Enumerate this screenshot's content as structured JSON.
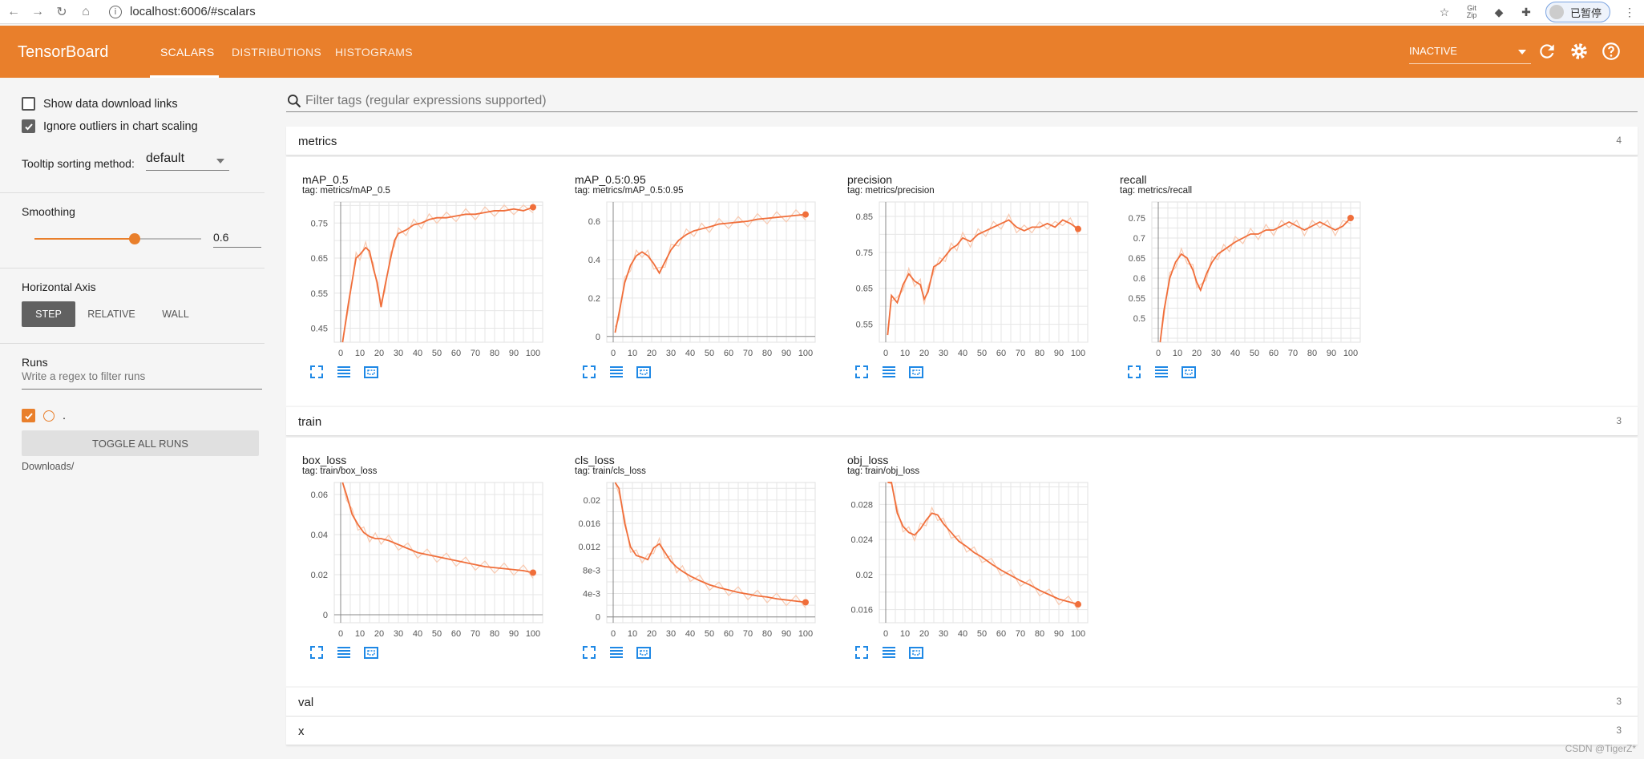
{
  "browser": {
    "url": "localhost:6006/#scalars",
    "paused_label": "已暂停"
  },
  "header": {
    "logo": "TensorBoard",
    "tabs": [
      "SCALARS",
      "DISTRIBUTIONS",
      "HISTOGRAMS"
    ],
    "status_select": "INACTIVE"
  },
  "sidebar": {
    "show_download_links": "Show data download links",
    "ignore_outliers": "Ignore outliers in chart scaling",
    "tooltip_label": "Tooltip sorting method:",
    "tooltip_value": "default",
    "smoothing_title": "Smoothing",
    "smoothing_value": "0.6",
    "smoothing_fraction": 0.6,
    "haxis_title": "Horizontal Axis",
    "haxis_options": [
      "STEP",
      "RELATIVE",
      "WALL"
    ],
    "runs_title": "Runs",
    "runs_filter_placeholder": "Write a regex to filter runs",
    "run_name": ".",
    "toggle_all": "TOGGLE ALL RUNS",
    "logdir": "Downloads/"
  },
  "main": {
    "filter_placeholder": "Filter tags (regular expressions supported)",
    "groups": [
      {
        "name": "metrics",
        "count": "4"
      },
      {
        "name": "train",
        "count": "3"
      },
      {
        "name": "val",
        "count": "3"
      },
      {
        "name": "x",
        "count": "3"
      }
    ]
  },
  "colors": {
    "accent": "#e97f2b",
    "line": "#f06e3a",
    "line_raw": "#f8c9b0"
  },
  "chart_data": [
    {
      "type": "line",
      "title": "mAP_0.5",
      "tag": "tag: metrics/mAP_0.5",
      "xlim": [
        0,
        100
      ],
      "ylim": [
        0.41,
        0.81
      ],
      "xticks": [
        "0",
        "10",
        "20",
        "30",
        "40",
        "50",
        "60",
        "70",
        "80",
        "90",
        "100"
      ],
      "yticks": [
        0.45,
        0.55,
        0.65,
        0.75
      ],
      "yticklabels": [
        "0.45",
        "0.55",
        "0.65",
        "0.75"
      ],
      "x": [
        1,
        4,
        8,
        10,
        13,
        15,
        17,
        19,
        21,
        23,
        26,
        28,
        30,
        34,
        38,
        42,
        46,
        50,
        55,
        60,
        65,
        70,
        75,
        80,
        85,
        90,
        95,
        100
      ],
      "y": [
        0.39,
        0.52,
        0.65,
        0.66,
        0.68,
        0.67,
        0.62,
        0.58,
        0.51,
        0.57,
        0.65,
        0.7,
        0.72,
        0.73,
        0.745,
        0.75,
        0.76,
        0.765,
        0.765,
        0.77,
        0.775,
        0.775,
        0.78,
        0.785,
        0.785,
        0.79,
        0.785,
        0.795
      ]
    },
    {
      "type": "line",
      "title": "mAP_0.5:0.95",
      "tag": "tag: metrics/mAP_0.5:0.95",
      "xlim": [
        0,
        100
      ],
      "ylim": [
        -0.03,
        0.7
      ],
      "xticks": [
        "0",
        "10",
        "20",
        "30",
        "40",
        "50",
        "60",
        "70",
        "80",
        "90",
        "100"
      ],
      "yticks": [
        0,
        0.2,
        0.4,
        0.6
      ],
      "yticklabels": [
        "0",
        "0.2",
        "0.4",
        "0.6"
      ],
      "x": [
        1,
        3,
        6,
        9,
        12,
        15,
        18,
        21,
        24,
        27,
        30,
        34,
        38,
        42,
        46,
        50,
        55,
        60,
        65,
        70,
        75,
        80,
        85,
        90,
        95,
        100
      ],
      "y": [
        0.02,
        0.12,
        0.28,
        0.37,
        0.42,
        0.44,
        0.42,
        0.38,
        0.33,
        0.39,
        0.45,
        0.5,
        0.53,
        0.55,
        0.56,
        0.57,
        0.585,
        0.59,
        0.595,
        0.6,
        0.61,
        0.615,
        0.62,
        0.625,
        0.63,
        0.635
      ]
    },
    {
      "type": "line",
      "title": "precision",
      "tag": "tag: metrics/precision",
      "xlim": [
        0,
        100
      ],
      "ylim": [
        0.5,
        0.89
      ],
      "xticks": [
        "0",
        "10",
        "20",
        "30",
        "40",
        "50",
        "60",
        "70",
        "80",
        "90",
        "100"
      ],
      "yticks": [
        0.55,
        0.65,
        0.75,
        0.85
      ],
      "yticklabels": [
        "0.55",
        "0.65",
        "0.75",
        "0.85"
      ],
      "x": [
        1,
        3,
        6,
        9,
        12,
        15,
        18,
        20,
        22,
        25,
        28,
        31,
        34,
        37,
        40,
        44,
        48,
        52,
        56,
        60,
        64,
        68,
        72,
        76,
        80,
        84,
        88,
        92,
        96,
        100
      ],
      "y": [
        0.52,
        0.63,
        0.61,
        0.66,
        0.69,
        0.67,
        0.66,
        0.62,
        0.64,
        0.71,
        0.72,
        0.74,
        0.76,
        0.77,
        0.79,
        0.78,
        0.8,
        0.81,
        0.82,
        0.83,
        0.84,
        0.82,
        0.81,
        0.82,
        0.82,
        0.83,
        0.82,
        0.84,
        0.83,
        0.815
      ]
    },
    {
      "type": "line",
      "title": "recall",
      "tag": "tag: metrics/recall",
      "xlim": [
        0,
        100
      ],
      "ylim": [
        0.44,
        0.79
      ],
      "xticks": [
        "0",
        "10",
        "20",
        "30",
        "40",
        "50",
        "60",
        "70",
        "80",
        "90",
        "100"
      ],
      "yticks": [
        0.5,
        0.55,
        0.6,
        0.65,
        0.7,
        0.75
      ],
      "yticklabels": [
        "0.5",
        "0.55",
        "0.6",
        "0.65",
        "0.7",
        "0.75"
      ],
      "x": [
        1,
        3,
        6,
        9,
        12,
        15,
        18,
        20,
        22,
        25,
        28,
        31,
        34,
        37,
        40,
        44,
        48,
        52,
        56,
        60,
        64,
        68,
        72,
        76,
        80,
        84,
        88,
        92,
        96,
        100
      ],
      "y": [
        0.42,
        0.52,
        0.6,
        0.64,
        0.66,
        0.65,
        0.62,
        0.59,
        0.57,
        0.61,
        0.64,
        0.66,
        0.67,
        0.68,
        0.69,
        0.7,
        0.71,
        0.71,
        0.72,
        0.72,
        0.73,
        0.74,
        0.73,
        0.72,
        0.73,
        0.74,
        0.73,
        0.72,
        0.73,
        0.75
      ]
    },
    {
      "type": "line",
      "title": "box_loss",
      "tag": "tag: train/box_loss",
      "xlim": [
        0,
        100
      ],
      "ylim": [
        -0.004,
        0.066
      ],
      "xticks": [
        "0",
        "10",
        "20",
        "30",
        "40",
        "50",
        "60",
        "70",
        "80",
        "90",
        "100"
      ],
      "yticks": [
        0,
        0.02,
        0.04,
        0.06
      ],
      "yticklabels": [
        "0",
        "0.02",
        "0.04",
        "0.06"
      ],
      "x": [
        1,
        3,
        6,
        9,
        12,
        15,
        18,
        21,
        25,
        30,
        35,
        40,
        45,
        50,
        55,
        60,
        65,
        70,
        75,
        80,
        85,
        90,
        95,
        100
      ],
      "y": [
        0.075,
        0.06,
        0.05,
        0.045,
        0.041,
        0.039,
        0.038,
        0.038,
        0.037,
        0.035,
        0.033,
        0.031,
        0.03,
        0.029,
        0.028,
        0.027,
        0.026,
        0.025,
        0.024,
        0.0235,
        0.023,
        0.0225,
        0.022,
        0.021
      ]
    },
    {
      "type": "line",
      "title": "cls_loss",
      "tag": "tag: train/cls_loss",
      "xlim": [
        0,
        100
      ],
      "ylim": [
        -0.001,
        0.023
      ],
      "xticks": [
        "0",
        "10",
        "20",
        "30",
        "40",
        "50",
        "60",
        "70",
        "80",
        "90",
        "100"
      ],
      "yticks": [
        0,
        0.004,
        0.008,
        0.012,
        0.016,
        0.02
      ],
      "yticklabels": [
        "0",
        "4e-3",
        "8e-3",
        "0.012",
        "0.016",
        "0.02"
      ],
      "x": [
        1,
        3,
        6,
        9,
        12,
        15,
        18,
        21,
        24,
        27,
        30,
        33,
        36,
        40,
        45,
        50,
        55,
        60,
        65,
        70,
        75,
        80,
        85,
        90,
        95,
        100
      ],
      "y": [
        0.028,
        0.022,
        0.016,
        0.012,
        0.0105,
        0.0102,
        0.0098,
        0.0118,
        0.0125,
        0.011,
        0.0095,
        0.0085,
        0.0078,
        0.007,
        0.0062,
        0.0055,
        0.005,
        0.0046,
        0.0042,
        0.0039,
        0.0036,
        0.0034,
        0.0031,
        0.0029,
        0.0027,
        0.0025
      ]
    },
    {
      "type": "line",
      "title": "obj_loss",
      "tag": "tag: train/obj_loss",
      "xlim": [
        0,
        100
      ],
      "ylim": [
        0.0145,
        0.0305
      ],
      "xticks": [
        "0",
        "10",
        "20",
        "30",
        "40",
        "50",
        "60",
        "70",
        "80",
        "90",
        "100"
      ],
      "yticks": [
        0.016,
        0.02,
        0.024,
        0.028
      ],
      "yticklabels": [
        "0.016",
        "0.02",
        "0.024",
        "0.028"
      ],
      "x": [
        1,
        3,
        6,
        9,
        12,
        15,
        18,
        21,
        24,
        27,
        30,
        34,
        38,
        42,
        46,
        50,
        55,
        60,
        65,
        70,
        75,
        80,
        85,
        90,
        95,
        100
      ],
      "y": [
        0.033,
        0.031,
        0.027,
        0.0255,
        0.0248,
        0.0245,
        0.0252,
        0.0262,
        0.027,
        0.0268,
        0.0258,
        0.0248,
        0.0238,
        0.0232,
        0.0225,
        0.022,
        0.0212,
        0.0205,
        0.0199,
        0.0193,
        0.0188,
        0.0182,
        0.0177,
        0.0172,
        0.0169,
        0.0166
      ]
    }
  ],
  "watermark": "CSDN @TigerZ*"
}
